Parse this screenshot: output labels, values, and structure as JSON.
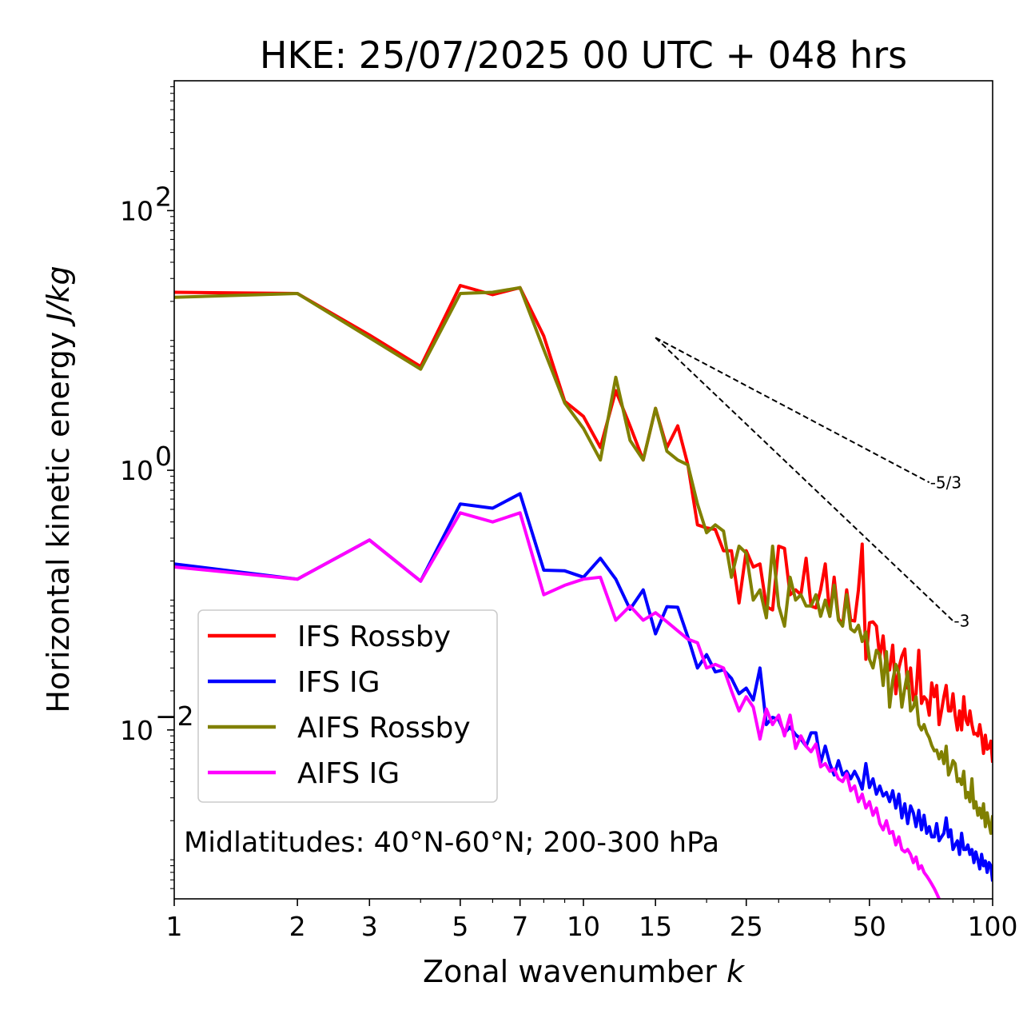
{
  "chart_data": {
    "type": "line",
    "title": "HKE: 25/07/2025 00 UTC + 048 hrs",
    "xlabel": "Zonal wavenumber",
    "xlabel_var": "k",
    "ylabel": "Horizontal kinetic energy",
    "ylabel_units": "J/kg",
    "xscale": "log",
    "yscale": "log",
    "xlim": [
      1,
      100
    ],
    "ylim": [
      0.0005,
      1000
    ],
    "x_ticks": [
      1,
      2,
      3,
      5,
      7,
      10,
      15,
      25,
      50,
      100
    ],
    "x_tick_labels": [
      "1",
      "2",
      "3",
      "5",
      "7",
      "10",
      "15",
      "25",
      "50",
      "100"
    ],
    "y_ticks": [
      {
        "value": 100,
        "base": "10",
        "exp": "2"
      },
      {
        "value": 1,
        "base": "10",
        "exp": "0"
      },
      {
        "value": 0.01,
        "base": "10",
        "exp": "−2"
      }
    ],
    "annotation": "Midlatitudes: 40°N-60°N; 200-300 hPa",
    "legend_position": "lower-left",
    "reference_lines": [
      {
        "label": "-5/3",
        "slope": -1.6667,
        "x_start": 15,
        "y_start": 10.5,
        "x_end": 70
      },
      {
        "label": "-3",
        "slope": -3,
        "x_start": 15,
        "y_start": 10.5,
        "x_end": 80
      }
    ],
    "series": [
      {
        "name": "IFS Rossby",
        "color": "#ff0000",
        "x": [
          1,
          2,
          3,
          4,
          5,
          6,
          7,
          8,
          9,
          10,
          11,
          12,
          13,
          14,
          15,
          16,
          17,
          18,
          19,
          20,
          21,
          22,
          23,
          24,
          25,
          26,
          27,
          28,
          29,
          30,
          31,
          32,
          33,
          34,
          35,
          36,
          37,
          38,
          39,
          40,
          41,
          42,
          43,
          44,
          45,
          46,
          47,
          48,
          49,
          50,
          51,
          52,
          53,
          54,
          55,
          56,
          57,
          58,
          59,
          60,
          61,
          62,
          63,
          64,
          65,
          66,
          67,
          68,
          69,
          70,
          71,
          72,
          73,
          74,
          75,
          76,
          77,
          78,
          79,
          80,
          81,
          82,
          83,
          84,
          85,
          86,
          87,
          88,
          89,
          90,
          91,
          92,
          93,
          94,
          95,
          96,
          97,
          98,
          99,
          100
        ],
        "y": [
          23.5,
          23,
          11,
          6.3,
          26.5,
          22.5,
          25.5,
          10.8,
          3.4,
          2.6,
          1.5,
          4.1,
          2.2,
          1.2,
          3,
          1.5,
          2.2,
          1.1,
          0.38,
          0.36,
          0.35,
          0.24,
          0.24,
          0.095,
          0.24,
          0.18,
          0.19,
          0.089,
          0.084,
          0.26,
          0.25,
          0.11,
          0.12,
          0.11,
          0.21,
          0.09,
          0.087,
          0.12,
          0.19,
          0.075,
          0.15,
          0.072,
          0.065,
          0.12,
          0.07,
          0.069,
          0.12,
          0.27,
          0.035,
          0.067,
          0.068,
          0.063,
          0.036,
          0.053,
          0.029,
          0.029,
          0.045,
          0.019,
          0.03,
          0.037,
          0.042,
          0.021,
          0.03,
          0.017,
          0.019,
          0.041,
          0.016,
          0.018,
          0.017,
          0.013,
          0.023,
          0.018,
          0.022,
          0.011,
          0.014,
          0.018,
          0.022,
          0.014,
          0.014,
          0.019,
          0.013,
          0.01,
          0.014,
          0.01,
          0.018,
          0.012,
          0.011,
          0.014,
          0.011,
          0.0093,
          0.0094,
          0.009,
          0.011,
          0.009,
          0.0066,
          0.0091,
          0.0071,
          0.0073,
          0.0082,
          0.0056
        ]
      },
      {
        "name": "IFS IG",
        "color": "#0000ff",
        "x": [
          1,
          2,
          3,
          4,
          5,
          6,
          7,
          8,
          9,
          10,
          11,
          12,
          13,
          14,
          15,
          16,
          17,
          18,
          19,
          20,
          21,
          22,
          23,
          24,
          25,
          26,
          27,
          28,
          29,
          30,
          31,
          32,
          33,
          34,
          35,
          36,
          37,
          38,
          39,
          40,
          41,
          42,
          43,
          44,
          45,
          46,
          47,
          48,
          49,
          50,
          51,
          52,
          53,
          54,
          55,
          56,
          57,
          58,
          59,
          60,
          61,
          62,
          63,
          64,
          65,
          66,
          67,
          68,
          69,
          70,
          71,
          72,
          73,
          74,
          75,
          76,
          77,
          78,
          79,
          80,
          81,
          82,
          83,
          84,
          85,
          86,
          87,
          88,
          89,
          90,
          91,
          92,
          93,
          94,
          95,
          96,
          97,
          98,
          99,
          100
        ],
        "y": [
          0.19,
          0.145,
          0.29,
          0.14,
          0.55,
          0.51,
          0.66,
          0.17,
          0.168,
          0.15,
          0.21,
          0.145,
          0.085,
          0.12,
          0.055,
          0.089,
          0.088,
          0.052,
          0.03,
          0.038,
          0.028,
          0.029,
          0.025,
          0.019,
          0.021,
          0.017,
          0.03,
          0.011,
          0.0125,
          0.012,
          0.0095,
          0.0105,
          0.0092,
          0.0085,
          0.0075,
          0.0095,
          0.0095,
          0.0056,
          0.0075,
          0.0055,
          0.0045,
          0.0058,
          0.0045,
          0.0048,
          0.0042,
          0.0048,
          0.0042,
          0.0035,
          0.0055,
          0.0036,
          0.0042,
          0.0032,
          0.0037,
          0.0031,
          0.0033,
          0.0028,
          0.0034,
          0.0025,
          0.0032,
          0.0021,
          0.0027,
          0.0019,
          0.0026,
          0.0023,
          0.0018,
          0.0024,
          0.0017,
          0.0022,
          0.0016,
          0.0018,
          0.0015,
          0.0015,
          0.0019,
          0.0014,
          0.0015,
          0.0016,
          0.0021,
          0.0015,
          0.0017,
          0.0012,
          0.0013,
          0.0014,
          0.0011,
          0.0016,
          0.0012,
          0.0012,
          0.0013,
          0.0011,
          0.0012,
          0.00095,
          0.00115,
          0.001,
          0.00085,
          0.0011,
          0.0009,
          0.00098,
          0.0008,
          0.00095,
          0.0009,
          0.00068
        ]
      },
      {
        "name": "AIFS Rossby",
        "color": "#808000",
        "x": [
          1,
          2,
          3,
          4,
          5,
          6,
          7,
          8,
          9,
          10,
          11,
          12,
          13,
          14,
          15,
          16,
          17,
          18,
          19,
          20,
          21,
          22,
          23,
          24,
          25,
          26,
          27,
          28,
          29,
          30,
          31,
          32,
          33,
          34,
          35,
          36,
          37,
          38,
          39,
          40,
          41,
          42,
          43,
          44,
          45,
          46,
          47,
          48,
          49,
          50,
          51,
          52,
          53,
          54,
          55,
          56,
          57,
          58,
          59,
          60,
          61,
          62,
          63,
          64,
          65,
          66,
          67,
          68,
          69,
          70,
          71,
          72,
          73,
          74,
          75,
          76,
          77,
          78,
          79,
          80,
          81,
          82,
          83,
          84,
          85,
          86,
          87,
          88,
          89,
          90,
          91,
          92,
          93,
          94,
          95,
          96,
          97,
          98,
          99,
          100
        ],
        "y": [
          21.5,
          23,
          10.5,
          6,
          23,
          23.5,
          25.5,
          8.5,
          3.3,
          2.1,
          1.2,
          5.2,
          1.7,
          1.2,
          3,
          1.4,
          1.2,
          1.1,
          0.55,
          0.33,
          0.38,
          0.34,
          0.15,
          0.26,
          0.23,
          0.1,
          0.12,
          0.073,
          0.26,
          0.09,
          0.063,
          0.15,
          0.1,
          0.11,
          0.09,
          0.09,
          0.11,
          0.075,
          0.1,
          0.075,
          0.13,
          0.07,
          0.063,
          0.11,
          0.06,
          0.057,
          0.064,
          0.048,
          0.057,
          0.035,
          0.03,
          0.041,
          0.038,
          0.022,
          0.04,
          0.015,
          0.024,
          0.032,
          0.027,
          0.015,
          0.021,
          0.028,
          0.014,
          0.015,
          0.018,
          0.011,
          0.01,
          0.011,
          0.0095,
          0.0087,
          0.0076,
          0.0069,
          0.007,
          0.006,
          0.0068,
          0.0055,
          0.0075,
          0.0045,
          0.005,
          0.0058,
          0.0055,
          0.004,
          0.0042,
          0.0038,
          0.0048,
          0.003,
          0.0033,
          0.0028,
          0.0042,
          0.0025,
          0.0028,
          0.0022,
          0.0025,
          0.0021,
          0.0027,
          0.0018,
          0.0023,
          0.0019,
          0.0016,
          0.0022
        ]
      },
      {
        "name": "AIFS IG",
        "color": "#ff00ff",
        "x": [
          1,
          2,
          3,
          4,
          5,
          6,
          7,
          8,
          9,
          10,
          11,
          12,
          13,
          14,
          15,
          16,
          17,
          18,
          19,
          20,
          21,
          22,
          23,
          24,
          25,
          26,
          27,
          28,
          29,
          30,
          31,
          32,
          33,
          34,
          35,
          36,
          37,
          38,
          39,
          40,
          41,
          42,
          43,
          44,
          45,
          46,
          47,
          48,
          49,
          50,
          51,
          52,
          53,
          54,
          55,
          56,
          57,
          58,
          59,
          60,
          61,
          62,
          63,
          64,
          65,
          66,
          67,
          68,
          69,
          70,
          71,
          72,
          73,
          74
        ],
        "y": [
          0.18,
          0.145,
          0.29,
          0.14,
          0.47,
          0.4,
          0.47,
          0.11,
          0.13,
          0.145,
          0.15,
          0.07,
          0.09,
          0.07,
          0.08,
          0.068,
          0.058,
          0.05,
          0.047,
          0.03,
          0.032,
          0.03,
          0.02,
          0.014,
          0.018,
          0.015,
          0.0085,
          0.0145,
          0.011,
          0.013,
          0.009,
          0.013,
          0.0072,
          0.009,
          0.0075,
          0.0068,
          0.0078,
          0.0052,
          0.0055,
          0.0048,
          0.005,
          0.0042,
          0.004,
          0.0046,
          0.0034,
          0.0037,
          0.0028,
          0.0032,
          0.0025,
          0.0028,
          0.0022,
          0.0025,
          0.0019,
          0.0017,
          0.002,
          0.0016,
          0.00165,
          0.0013,
          0.0015,
          0.0012,
          0.00115,
          0.0012,
          0.0011,
          0.00095,
          0.00105,
          0.00085,
          0.0009,
          0.0008,
          0.00075,
          0.0007,
          0.00065,
          0.0006,
          0.00055,
          0.0005
        ]
      }
    ]
  }
}
